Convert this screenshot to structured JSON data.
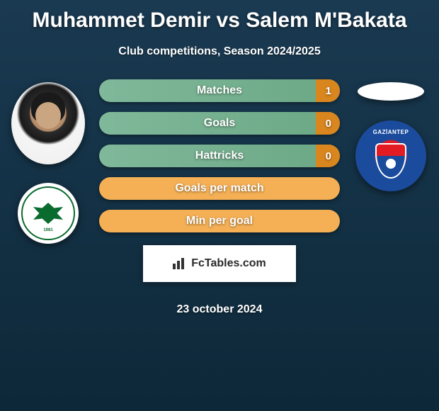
{
  "header": {
    "title": "Muhammet Demir vs Salem M'Bakata",
    "subtitle": "Club competitions, Season 2024/2025"
  },
  "stats": [
    {
      "label": "Matches",
      "value": "1",
      "variant": "with-value"
    },
    {
      "label": "Goals",
      "value": "0",
      "variant": "with-value"
    },
    {
      "label": "Hattricks",
      "value": "0",
      "variant": "with-value"
    },
    {
      "label": "Goals per match",
      "value": "",
      "variant": "no-value"
    },
    {
      "label": "Min per goal",
      "value": "",
      "variant": "no-value"
    }
  ],
  "brand": {
    "label": "FcTables.com"
  },
  "date": "23 october 2024",
  "left_club": {
    "name": "KONYASPOR",
    "year": "1981"
  },
  "right_club": {
    "name": "GAZİANTEP"
  },
  "colors": {
    "bg_top": "#1a3a52",
    "bg_bottom": "#0d2838",
    "bar_green": "#7fb89a",
    "bar_orange_right": "#d9861f",
    "bar_orange_full": "#f5b055",
    "club1_green": "#0a6b2f",
    "club2_red": "#e31b23",
    "club2_blue": "#1a4b9c"
  }
}
